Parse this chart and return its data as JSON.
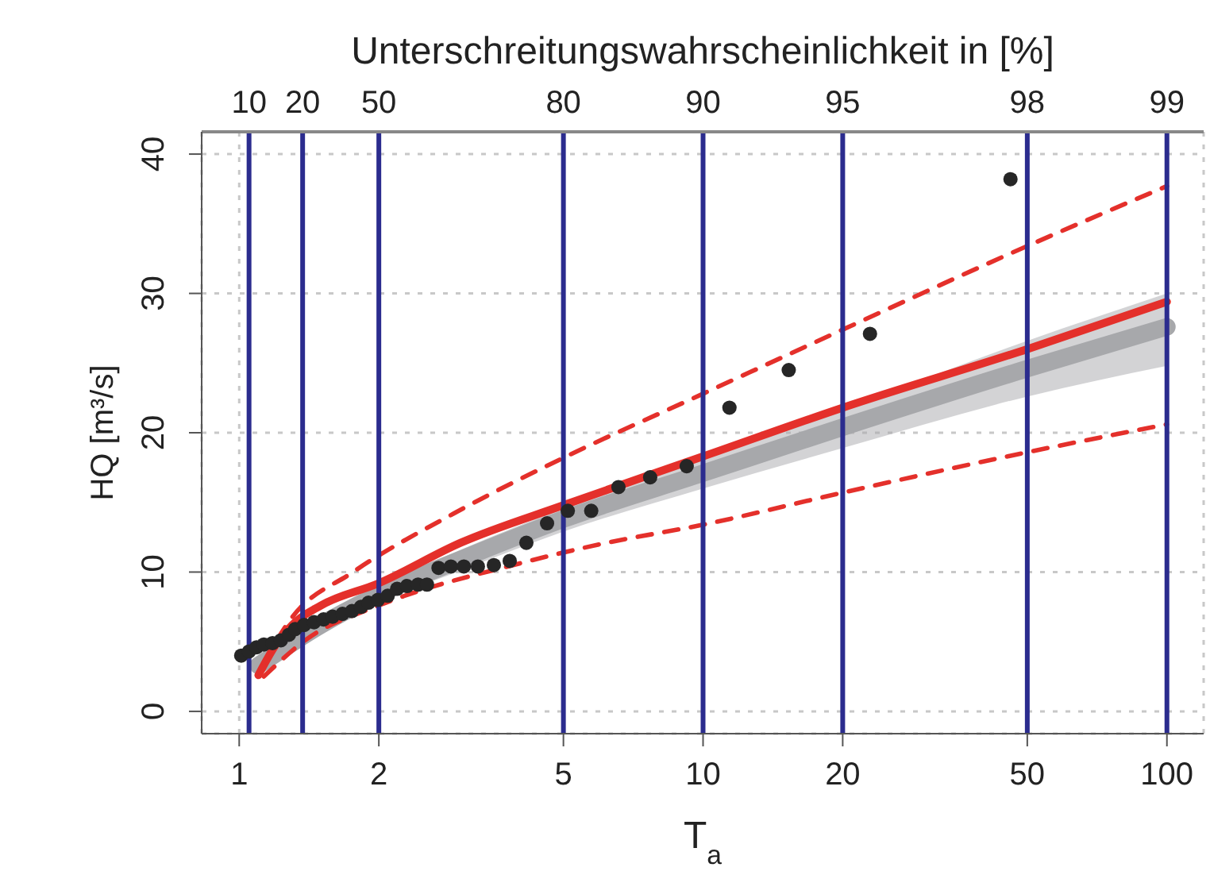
{
  "chart_data": {
    "type": "scatter",
    "title": "Unterschreitungswahrscheinlichkeit in [%]",
    "xlabel": "T$_{a}$",
    "ylabel": "HQ [m³/s]",
    "log": "x",
    "grid": true,
    "legend": false,
    "xlim": [
      0.83,
      120
    ],
    "xticks": [
      1,
      2,
      5,
      10,
      20,
      50,
      100
    ],
    "annotations": [
      "10",
      "20",
      "50",
      "80",
      "90",
      "95",
      "98",
      "99"
    ],
    "ylim": [
      -1.6,
      41.6
    ],
    "yticks": [
      0,
      10,
      20,
      30,
      40
    ],
    "ref_lines": [
      {
        "axis": "x",
        "value": 1.05,
        "color": "#2b2c8e"
      },
      {
        "axis": "x",
        "value": 1.37,
        "color": "#2b2c8e"
      },
      {
        "axis": "x",
        "value": 2,
        "color": "#2b2c8e"
      },
      {
        "axis": "x",
        "value": 5,
        "color": "#2b2c8e"
      },
      {
        "axis": "x",
        "value": 10,
        "color": "#2b2c8e"
      },
      {
        "axis": "x",
        "value": 20,
        "color": "#2b2c8e"
      },
      {
        "axis": "x",
        "value": 50,
        "color": "#2b2c8e"
      },
      {
        "axis": "x",
        "value": 100,
        "color": "#2b2c8e"
      }
    ],
    "series": [
      {
        "type": "line",
        "color": "#a7a8ab",
        "x": [
          1.1,
          1.5,
          2,
          3,
          5,
          10,
          20,
          50,
          100
        ],
        "values": [
          3.3,
          6.2,
          8.4,
          10.9,
          13.8,
          17.1,
          20.4,
          24.6,
          27.6
        ],
        "lower": [
          2.9,
          5.7,
          7.8,
          10.1,
          12.9,
          16.0,
          18.9,
          22.6,
          24.8
        ],
        "upper": [
          3.8,
          6.6,
          9.0,
          11.6,
          14.6,
          18.2,
          21.7,
          26.6,
          30.0
        ]
      },
      {
        "type": "line",
        "color": "#e4302b",
        "line_style": "solid",
        "x": [
          1.1,
          1.2,
          1.3,
          1.5,
          2,
          3,
          5,
          10,
          20,
          50,
          100
        ],
        "values": [
          2.6,
          4.8,
          6.2,
          7.6,
          9.2,
          12.1,
          14.8,
          18.3,
          21.8,
          26.0,
          29.4
        ]
      },
      {
        "type": "line",
        "color": "#e4302b",
        "line_style": "dashed",
        "x": [
          1.13,
          1.29,
          1.76,
          2.9,
          5,
          10,
          20,
          50,
          100
        ],
        "values": [
          3.5,
          6.6,
          10.0,
          14.2,
          18.2,
          22.8,
          27.4,
          33.4,
          37.7
        ]
      },
      {
        "type": "line",
        "color": "#e4302b",
        "line_style": "dashed",
        "x": [
          1.13,
          1.4,
          2,
          4,
          6,
          10,
          20,
          50,
          100
        ],
        "values": [
          2.5,
          5.2,
          7.6,
          10.6,
          12.0,
          13.4,
          15.7,
          18.6,
          20.6
        ]
      },
      {
        "color": "#262626",
        "marker": "circle",
        "x": [
          1.01,
          1.05,
          1.09,
          1.13,
          1.18,
          1.23,
          1.28,
          1.32,
          1.38,
          1.45,
          1.52,
          1.59,
          1.67,
          1.75,
          1.83,
          1.9,
          1.99,
          2.09,
          2.19,
          2.3,
          2.43,
          2.54,
          2.69,
          2.86,
          3.05,
          3.27,
          3.54,
          3.83,
          4.16,
          4.61,
          5.11,
          5.74,
          6.57,
          7.69,
          9.22,
          11.4,
          15.3,
          22.9,
          46
        ],
        "values": [
          4.0,
          4.3,
          4.6,
          4.8,
          4.9,
          5.1,
          5.5,
          5.9,
          6.2,
          6.4,
          6.6,
          6.8,
          7.0,
          7.2,
          7.5,
          7.8,
          8.0,
          8.3,
          8.8,
          9.0,
          9.1,
          9.1,
          10.3,
          10.4,
          10.4,
          10.4,
          10.5,
          10.8,
          12.1,
          13.5,
          14.4,
          14.4,
          16.1,
          16.8,
          17.6,
          21.8,
          24.5,
          27.1,
          38.2
        ]
      }
    ]
  }
}
